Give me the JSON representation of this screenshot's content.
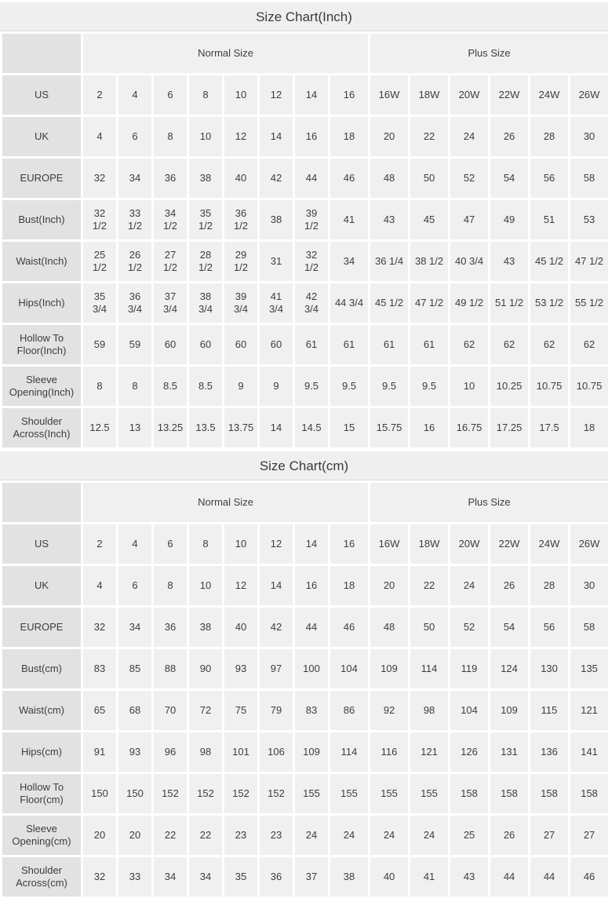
{
  "colors": {
    "title_band_bg": "#f0efef",
    "title_band_border": "#dedddd",
    "label_cell_bg": "#e3e2e2",
    "data_cell_bg": "#f1f0f0",
    "text": "#3d3d3d",
    "gap": "#ffffff"
  },
  "chart_data": [
    {
      "type": "table",
      "title": "Size Chart(Inch)",
      "column_groups": [
        {
          "label": "Normal Size",
          "span": 8
        },
        {
          "label": "Plus Size",
          "span": 6
        }
      ],
      "rows": [
        {
          "label": "US",
          "values": [
            "2",
            "4",
            "6",
            "8",
            "10",
            "12",
            "14",
            "16",
            "16W",
            "18W",
            "20W",
            "22W",
            "24W",
            "26W"
          ]
        },
        {
          "label": "UK",
          "values": [
            "4",
            "6",
            "8",
            "10",
            "12",
            "14",
            "16",
            "18",
            "20",
            "22",
            "24",
            "26",
            "28",
            "30"
          ]
        },
        {
          "label": "EUROPE",
          "values": [
            "32",
            "34",
            "36",
            "38",
            "40",
            "42",
            "44",
            "46",
            "48",
            "50",
            "52",
            "54",
            "56",
            "58"
          ]
        },
        {
          "label": "Bust(Inch)",
          "values": [
            "32 1/2",
            "33 1/2",
            "34 1/2",
            "35 1/2",
            "36 1/2",
            "38",
            "39 1/2",
            "41",
            "43",
            "45",
            "47",
            "49",
            "51",
            "53"
          ]
        },
        {
          "label": "Waist(Inch)",
          "values": [
            "25 1/2",
            "26 1/2",
            "27 1/2",
            "28 1/2",
            "29 1/2",
            "31",
            "32 1/2",
            "34",
            "36 1/4",
            "38 1/2",
            "40 3/4",
            "43",
            "45 1/2",
            "47 1/2"
          ]
        },
        {
          "label": "Hips(Inch)",
          "values": [
            "35 3/4",
            "36 3/4",
            "37 3/4",
            "38 3/4",
            "39 3/4",
            "41 3/4",
            "42 3/4",
            "44 3/4",
            "45 1/2",
            "47 1/2",
            "49 1/2",
            "51 1/2",
            "53 1/2",
            "55 1/2"
          ]
        },
        {
          "label": "Hollow To Floor(Inch)",
          "values": [
            "59",
            "59",
            "60",
            "60",
            "60",
            "60",
            "61",
            "61",
            "61",
            "61",
            "62",
            "62",
            "62",
            "62"
          ]
        },
        {
          "label": "Sleeve Opening(Inch)",
          "values": [
            "8",
            "8",
            "8.5",
            "8.5",
            "9",
            "9",
            "9.5",
            "9.5",
            "9.5",
            "9.5",
            "10",
            "10.25",
            "10.75",
            "10.75"
          ]
        },
        {
          "label": "Shoulder Across(Inch)",
          "values": [
            "12.5",
            "13",
            "13.25",
            "13.5",
            "13.75",
            "14",
            "14.5",
            "15",
            "15.75",
            "16",
            "16.75",
            "17.25",
            "17.5",
            "18"
          ]
        }
      ]
    },
    {
      "type": "table",
      "title": "Size Chart(cm)",
      "column_groups": [
        {
          "label": "Normal Size",
          "span": 8
        },
        {
          "label": "Plus Size",
          "span": 6
        }
      ],
      "rows": [
        {
          "label": "US",
          "values": [
            "2",
            "4",
            "6",
            "8",
            "10",
            "12",
            "14",
            "16",
            "16W",
            "18W",
            "20W",
            "22W",
            "24W",
            "26W"
          ]
        },
        {
          "label": "UK",
          "values": [
            "4",
            "6",
            "8",
            "10",
            "12",
            "14",
            "16",
            "18",
            "20",
            "22",
            "24",
            "26",
            "28",
            "30"
          ]
        },
        {
          "label": "EUROPE",
          "values": [
            "32",
            "34",
            "36",
            "38",
            "40",
            "42",
            "44",
            "46",
            "48",
            "50",
            "52",
            "54",
            "56",
            "58"
          ]
        },
        {
          "label": "Bust(cm)",
          "values": [
            "83",
            "85",
            "88",
            "90",
            "93",
            "97",
            "100",
            "104",
            "109",
            "114",
            "119",
            "124",
            "130",
            "135"
          ]
        },
        {
          "label": "Waist(cm)",
          "values": [
            "65",
            "68",
            "70",
            "72",
            "75",
            "79",
            "83",
            "86",
            "92",
            "98",
            "104",
            "109",
            "115",
            "121"
          ]
        },
        {
          "label": "Hips(cm)",
          "values": [
            "91",
            "93",
            "96",
            "98",
            "101",
            "106",
            "109",
            "114",
            "116",
            "121",
            "126",
            "131",
            "136",
            "141"
          ]
        },
        {
          "label": "Hollow To Floor(cm)",
          "values": [
            "150",
            "150",
            "152",
            "152",
            "152",
            "152",
            "155",
            "155",
            "155",
            "155",
            "158",
            "158",
            "158",
            "158"
          ]
        },
        {
          "label": "Sleeve Opening(cm)",
          "values": [
            "20",
            "20",
            "22",
            "22",
            "23",
            "23",
            "24",
            "24",
            "24",
            "24",
            "25",
            "26",
            "27",
            "27"
          ]
        },
        {
          "label": "Shoulder Across(cm)",
          "values": [
            "32",
            "33",
            "34",
            "34",
            "35",
            "36",
            "37",
            "38",
            "40",
            "41",
            "43",
            "44",
            "44",
            "46"
          ]
        }
      ]
    }
  ]
}
